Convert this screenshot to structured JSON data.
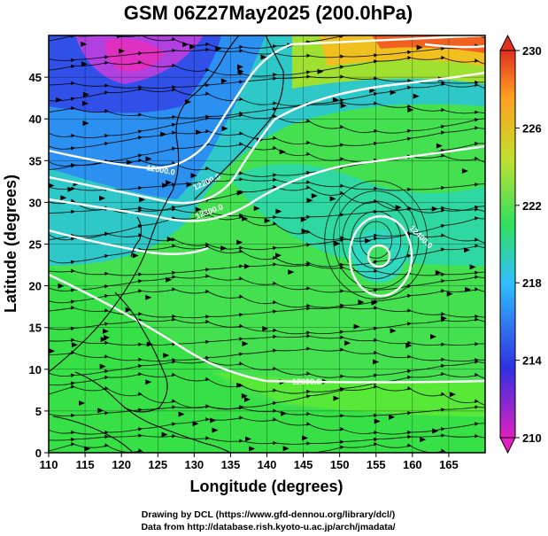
{
  "title": "GSM 06Z27May2025 (200.0hPa)",
  "xlabel": "Longitude (degrees)",
  "ylabel": "Latitude  (degrees)",
  "credit_line1": "Drawing by DCL (https://www.gfd-dennou.org/library/dcl/)",
  "credit_line2": "Data from http://database.rish.kyoto-u.ac.jp/arch/jmadata/",
  "chart_data": {
    "type": "heatmap",
    "variable": "temperature with streamlines and geopotential contours",
    "title": "GSM 06Z27May2025 (200.0hPa)",
    "xlabel": "Longitude (degrees)",
    "ylabel": "Latitude  (degrees)",
    "xlim": [
      110,
      170
    ],
    "ylim": [
      0,
      50
    ],
    "x_ticks": [
      110,
      115,
      120,
      125,
      130,
      135,
      140,
      145,
      150,
      155,
      160,
      165
    ],
    "y_ticks": [
      0,
      5,
      10,
      15,
      20,
      25,
      30,
      35,
      40,
      45
    ],
    "colorbar": {
      "min": 210,
      "max": 230,
      "ticks": [
        210,
        214,
        218,
        222,
        226,
        230
      ],
      "stops": [
        "#e020c0",
        "#3030e0",
        "#30c0ff",
        "#30e060",
        "#c0e030",
        "#ffa020",
        "#e03020"
      ]
    },
    "contour_labels": [
      "12000.0",
      "12300.0",
      "12200.0",
      "12400.0",
      "12000.0"
    ],
    "grid": true
  }
}
